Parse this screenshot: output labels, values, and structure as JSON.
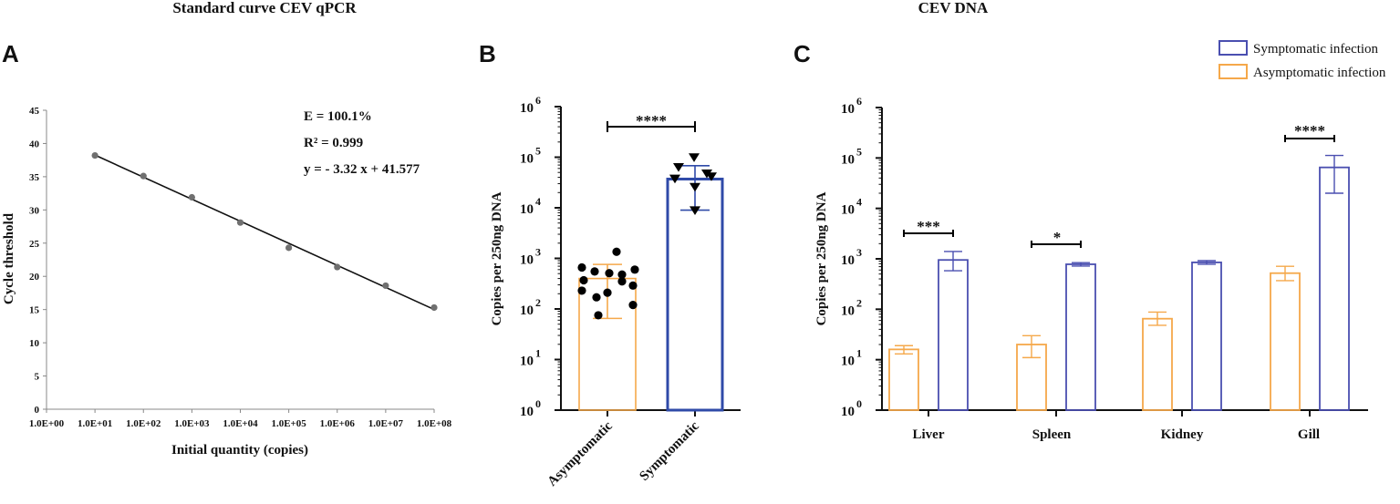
{
  "figure": {
    "title_left": "Standard curve CEV qPCR",
    "title_right": "CEV DNA",
    "panel_letters": [
      "A",
      "B",
      "C"
    ]
  },
  "colors": {
    "asymptomatic": "#f5a84a",
    "symptomatic": "#4a4fb0",
    "symptomatic_b": "#2f4aa8",
    "ink": "#111111",
    "point": "#707070"
  },
  "chart_data": [
    {
      "id": "A",
      "type": "scatter",
      "title": "",
      "xlabel": "Initial quantity (copies)",
      "ylabel": "Cycle threshold",
      "xticks": [
        "1.0E+00",
        "1.0E+01",
        "1.0E+02",
        "1.0E+03",
        "1.0E+04",
        "1.0E+05",
        "1.0E+06",
        "1.0E+07",
        "1.0E+08"
      ],
      "xlim_log10": [
        0,
        8
      ],
      "ylim": [
        0,
        45
      ],
      "yticks": [
        0,
        5,
        10,
        15,
        20,
        25,
        30,
        35,
        40,
        45
      ],
      "points": [
        {
          "x_log10": 1,
          "y": 38.2
        },
        {
          "x_log10": 2,
          "y": 35.1
        },
        {
          "x_log10": 3,
          "y": 31.9
        },
        {
          "x_log10": 4,
          "y": 28.1
        },
        {
          "x_log10": 5,
          "y": 24.3
        },
        {
          "x_log10": 6,
          "y": 21.4
        },
        {
          "x_log10": 7,
          "y": 18.6
        },
        {
          "x_log10": 8,
          "y": 15.3
        }
      ],
      "fit": {
        "slope": -3.32,
        "intercept": 41.577,
        "x_from": 1,
        "x_to": 8
      },
      "annotations": [
        "E = 100.1%",
        "R² = 0.999",
        "y = - 3.32 x + 41.577"
      ]
    },
    {
      "id": "B",
      "type": "bar",
      "ylabel": "Copies per 250ng DNA",
      "yscale": "log10",
      "ylim_log10": [
        0,
        6
      ],
      "ytick_exponents": [
        0,
        1,
        2,
        3,
        4,
        5,
        6
      ],
      "ytick_base": "10",
      "categories": [
        "Asymptomatic",
        "Symptomatic"
      ],
      "bars": [
        {
          "name": "Asymptomatic",
          "value": 400,
          "err_low": 65,
          "err_high": 760
        },
        {
          "name": "Symptomatic",
          "value": 37000,
          "err_low": 9000,
          "err_high": 68000
        }
      ],
      "points": [
        {
          "category": "Asymptomatic",
          "values": [
            1350,
            660,
            600,
            550,
            510,
            480,
            370,
            350,
            290,
            230,
            210,
            170,
            120,
            75
          ]
        },
        {
          "category": "Symptomatic",
          "values": [
            100000,
            64000,
            48000,
            42000,
            38000,
            26000,
            9000
          ]
        }
      ],
      "significance": "****"
    },
    {
      "id": "C",
      "type": "bar",
      "ylabel": "Copies per 250ng DNA",
      "yscale": "log10",
      "ylim_log10": [
        0,
        6
      ],
      "ytick_exponents": [
        0,
        1,
        2,
        3,
        4,
        5,
        6
      ],
      "ytick_base": "10",
      "categories": [
        "Liver",
        "Spleen",
        "Kidney",
        "Gill"
      ],
      "series": [
        {
          "name": "Asymptomatic infection",
          "values": [
            16,
            20,
            65,
            520
          ],
          "err_low": [
            13,
            11,
            48,
            370
          ],
          "err_high": [
            19,
            30,
            88,
            710
          ]
        },
        {
          "name": "Symptomatic infection",
          "values": [
            950,
            780,
            850,
            65000
          ],
          "err_low": [
            580,
            720,
            780,
            20000
          ],
          "err_high": [
            1400,
            840,
            920,
            112000
          ]
        }
      ],
      "significance": [
        "***",
        "*",
        "",
        "****"
      ],
      "legend": [
        "Symptomatic infection",
        "Asymptomatic infection"
      ],
      "legend_position": "top-right"
    }
  ]
}
